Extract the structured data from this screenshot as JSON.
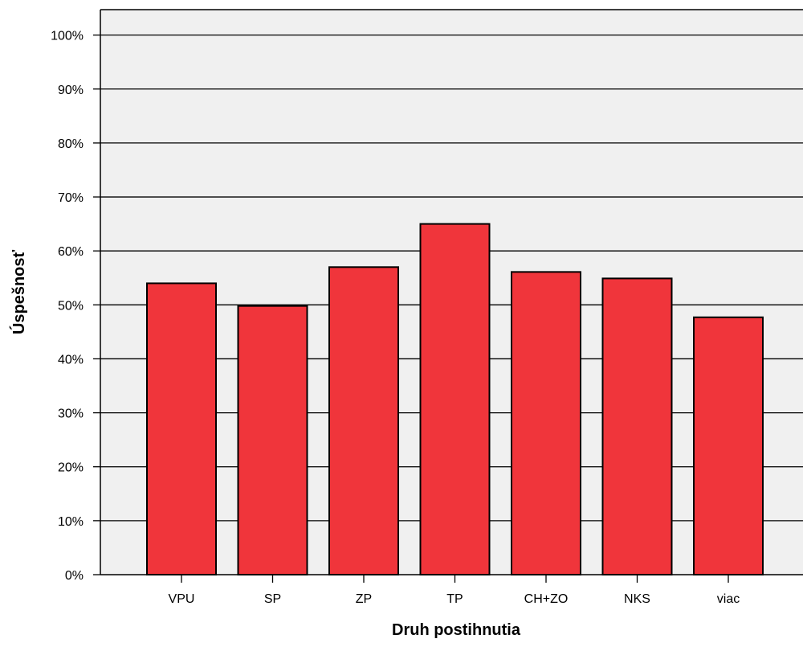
{
  "chart_data": {
    "type": "bar",
    "title": "",
    "xlabel": "Druh postihnutia",
    "ylabel": "Úspešnosť",
    "categories": [
      "VPU",
      "SP",
      "ZP",
      "TP",
      "CH+ZO",
      "NKS",
      "viac"
    ],
    "values": [
      54,
      49.8,
      57,
      65,
      56.1,
      54.9,
      47.7
    ],
    "value_unit": "%",
    "ylim": [
      0,
      100
    ],
    "yticks": [
      0,
      10,
      20,
      30,
      40,
      50,
      60,
      70,
      80,
      90,
      100
    ],
    "ytick_labels": [
      "0%",
      "10%",
      "20%",
      "30%",
      "40%",
      "50%",
      "60%",
      "70%",
      "80%",
      "90%",
      "100%"
    ],
    "grid": true,
    "legend": "none",
    "colors": {
      "bar_fill": "#f0353b",
      "bar_stroke": "#000000",
      "plot_background": "#f0f0f0",
      "grid": "#000000"
    }
  }
}
